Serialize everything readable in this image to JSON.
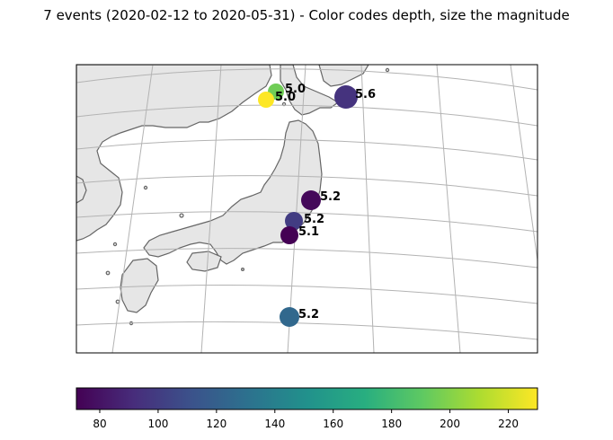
{
  "title": "7 events (2020-02-12 to 2020-05-31) - Color codes depth, size the magnitude",
  "colors": {
    "land": "#e6e6e6",
    "coast": "#666666",
    "grid": "#b3b3b3",
    "water": "#ffffff",
    "frame": "#000000"
  },
  "events": [
    {
      "magnitude": "5.0",
      "depth_color_value": 195
    },
    {
      "magnitude": "5.0",
      "depth_color_value": 230
    },
    {
      "magnitude": "5.6",
      "depth_color_value": 95
    },
    {
      "magnitude": "5.2",
      "depth_color_value": 75
    },
    {
      "magnitude": "5.2",
      "depth_color_value": 100
    },
    {
      "magnitude": "5.1",
      "depth_color_value": 72
    },
    {
      "magnitude": "5.2",
      "depth_color_value": 125
    }
  ],
  "colorbar": {
    "min": 72,
    "max": 230,
    "ticks": [
      "80",
      "100",
      "120",
      "140",
      "160",
      "180",
      "200",
      "220"
    ],
    "colormap": "viridis"
  }
}
